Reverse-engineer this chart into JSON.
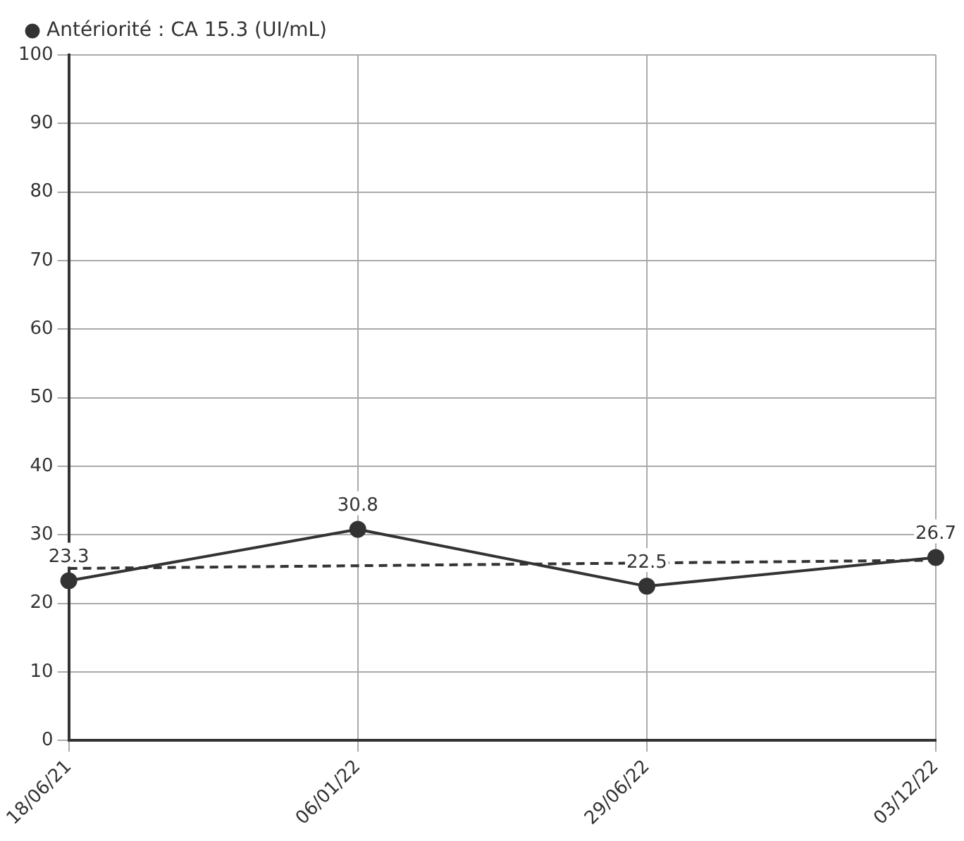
{
  "chart_data": {
    "type": "line",
    "categories": [
      "18/06/21",
      "06/01/22",
      "29/06/22",
      "03/12/22"
    ],
    "series": [
      {
        "name": "Antériorité : CA 15.3 (UI/mL)",
        "color": "#333333",
        "values": [
          23.3,
          30.8,
          22.5,
          26.7
        ],
        "value_labels": [
          "23.3",
          "30.8",
          "22.5",
          "26.7"
        ],
        "marker": "circle",
        "line_style": "solid"
      },
      {
        "color": "#333333",
        "values": [
          25.1,
          null,
          null,
          26.3
        ],
        "marker": "none",
        "line_style": "dashed"
      }
    ],
    "ylim": [
      0,
      100
    ],
    "yticks": [
      0,
      10,
      20,
      30,
      40,
      50,
      60,
      70,
      80,
      90,
      100
    ],
    "grid": true,
    "legend": "top left"
  }
}
